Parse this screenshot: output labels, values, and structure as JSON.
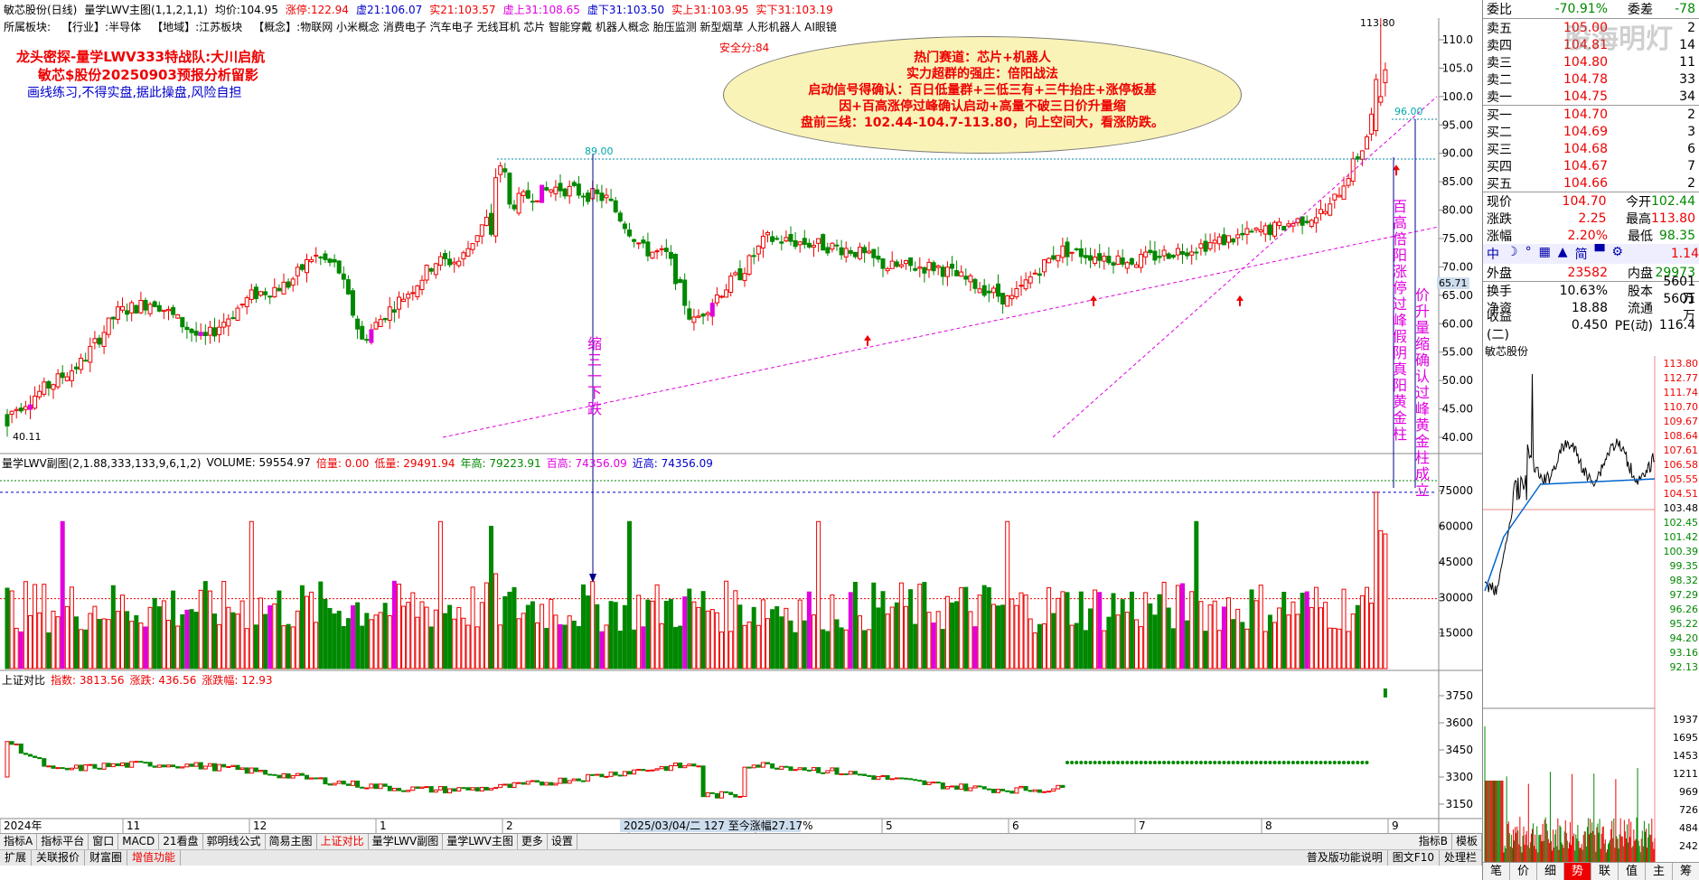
{
  "titlebar": {
    "stock": "敏芯股份(日线)",
    "indicator": "量学LWV主图(1,1,2,1,1)",
    "avg_label": "均价:",
    "avg_value": "104.95",
    "zt_label": "涨停:",
    "zt_value": "122.94",
    "x1": "虚21:106.07",
    "x2": "实21:103.57",
    "x3": "虚上31:108.65",
    "x4": "虚下31:103.50",
    "x5": "实上31:103.95",
    "x6": "实下31:103.19"
  },
  "infobar": {
    "sector_label": "所属板块:",
    "industry_label": "【行业】:",
    "industry": "半导体",
    "region_label": "【地域】:",
    "region": "江苏板块",
    "concept_label": "【概念】:",
    "concepts": "物联网 小米概念 消费电子 汽车电子 无线耳机 芯片 智能穿戴 机器人概念 胎压监测 新型烟草 人形机器人 AI眼镜"
  },
  "annotations": {
    "headline1": "龙头密探-量学LWV333特战队:大川启航",
    "headline2": "敏芯$股份20250903预报分析留影",
    "headline3": "画线练习,不得实盘,据此操盘,风险自担",
    "safety": "安全分:84",
    "ellipse_lines": [
      "热门赛道：芯片+机器人",
      "实力超群的强庄：倍阳战法",
      "启动信号得确认：百日低量群+三低三有+三牛抬庄+涨停板基",
      "因+百高涨停过峰确认启动+高量不破三日价升量缩",
      "盘前三线：102.44-104.7-113.80，向上空间大，看涨防跌。"
    ],
    "vtext_shrink": "缩三一下跌",
    "vtext_left": "百高倍阳涨停过峰假阴真阳黄金柱",
    "vtext_right": "价升量缩确认过峰黄金柱成立",
    "label_high": "113.80",
    "label_low": "40.11",
    "label_89": "89.00",
    "label_96": "96.00",
    "price_tag": "65.71"
  },
  "main_axis": [
    "110.0",
    "105.0",
    "100.0",
    "95.00",
    "90.00",
    "85.00",
    "80.00",
    "75.00",
    "70.00",
    "65.00",
    "60.00",
    "55.00",
    "50.00",
    "45.00",
    "40.00"
  ],
  "volume_panel": {
    "title": "量学LWV副图(2,1.88,333,133,9,6,1,2)",
    "volume": "VOLUME: 59554.97",
    "bei": "倍量: 0.00",
    "di": "低量: 29491.94",
    "nian": "年高: 79223.91",
    "bai": "百高: 74356.09",
    "jin": "近高: 74356.09",
    "axis": [
      "75000",
      "60000",
      "45000",
      "30000",
      "15000"
    ]
  },
  "index_panel": {
    "title": "上证对比",
    "zhishu": "指数: 3813.56",
    "zhangdie": "涨跌: 436.56",
    "fu": "涨跌幅: 12.93",
    "axis": [
      "3750",
      "3600",
      "3450",
      "3300",
      "3150"
    ]
  },
  "dates": [
    "2024年",
    "11",
    "12",
    "1",
    "2",
    "3",
    "4",
    "5",
    "6",
    "7",
    "8",
    "9"
  ],
  "date_range": "2025/03/04/二 127 至今涨幅27.17%",
  "bottom_tabs": [
    "指标A",
    "指标平台",
    "窗口",
    "MACD",
    "21看盘",
    "郭明线公式",
    "简易主图",
    "上证对比",
    "量学LWV副图",
    "量学LWV主图",
    "更多",
    "设置"
  ],
  "bottom_right": [
    "指标B",
    "模板"
  ],
  "bottom_tabs2": [
    "扩展",
    "关联报价",
    "财富圈",
    "增值功能"
  ],
  "status": [
    "普及版功能说明",
    "图文F10",
    "处理栏"
  ],
  "quote": {
    "weibi_label": "委比",
    "weibi": "-70.91%",
    "weicha_label": "委差",
    "weicha": "-78",
    "sell": [
      {
        "label": "卖五",
        "price": "105.00",
        "vol": "2"
      },
      {
        "label": "卖四",
        "price": "104.81",
        "vol": "14"
      },
      {
        "label": "卖三",
        "price": "104.80",
        "vol": "11"
      },
      {
        "label": "卖二",
        "price": "104.78",
        "vol": "33"
      },
      {
        "label": "卖一",
        "price": "104.75",
        "vol": "34"
      }
    ],
    "buy": [
      {
        "label": "买一",
        "price": "104.70",
        "vol": "2"
      },
      {
        "label": "买二",
        "price": "104.69",
        "vol": "3"
      },
      {
        "label": "买三",
        "price": "104.68",
        "vol": "6"
      },
      {
        "label": "买四",
        "price": "104.67",
        "vol": "7"
      },
      {
        "label": "买五",
        "price": "104.66",
        "vol": "2"
      }
    ],
    "stats": [
      {
        "l1": "现价",
        "v1": "104.70",
        "l2": "今开",
        "v2": "102.44",
        "c1": "red",
        "c2": "green"
      },
      {
        "l1": "涨跌",
        "v1": "2.25",
        "l2": "最高",
        "v2": "113.80",
        "c1": "red",
        "c2": "red"
      },
      {
        "l1": "涨幅",
        "v1": "2.20%",
        "l2": "最低",
        "v2": "98.35",
        "c1": "red",
        "c2": "green"
      }
    ],
    "liangbi": "1.14",
    "waipan_label": "外盘",
    "waipan": "23582",
    "neipan_label": "内盘",
    "neipan": "29973",
    "stats2": [
      {
        "l1": "换手",
        "v1": "10.63%",
        "l2": "股本",
        "v2": "5601万"
      },
      {
        "l1": "净资",
        "v1": "18.88",
        "l2": "流通",
        "v2": "5601万"
      },
      {
        "l1": "收益(二)",
        "v1": "0.450",
        "l2": "PE(动)",
        "v2": "116.4"
      }
    ],
    "watermark": "股海明灯",
    "toolbar": [
      "中",
      "☽",
      "°",
      "▦",
      "▲",
      "简",
      "▀",
      "⚙"
    ]
  },
  "mini": {
    "title": "敏芯股份",
    "left_axis": [
      "113.80",
      "112.77",
      "111.74",
      "110.70",
      "109.67",
      "108.64",
      "107.61",
      "106.58",
      "105.55",
      "104.51",
      "103.48",
      "102.45",
      "101.42",
      "100.39",
      "99.35",
      "98.32",
      "97.29",
      "96.26",
      "95.22",
      "94.20",
      "93.16",
      "92.13"
    ],
    "vol_axis": [
      "1937",
      "1695",
      "1453",
      "1211",
      "969",
      "726",
      "484",
      "242"
    ]
  },
  "right_tabs": [
    "笔",
    "价",
    "细",
    "势",
    "联",
    "值",
    "主",
    "筹"
  ],
  "chart_data": {
    "type": "candlestick",
    "note_series": "daily",
    "ylim": [
      38,
      114
    ],
    "high_value": 113.8,
    "low_value": 40.11
  }
}
